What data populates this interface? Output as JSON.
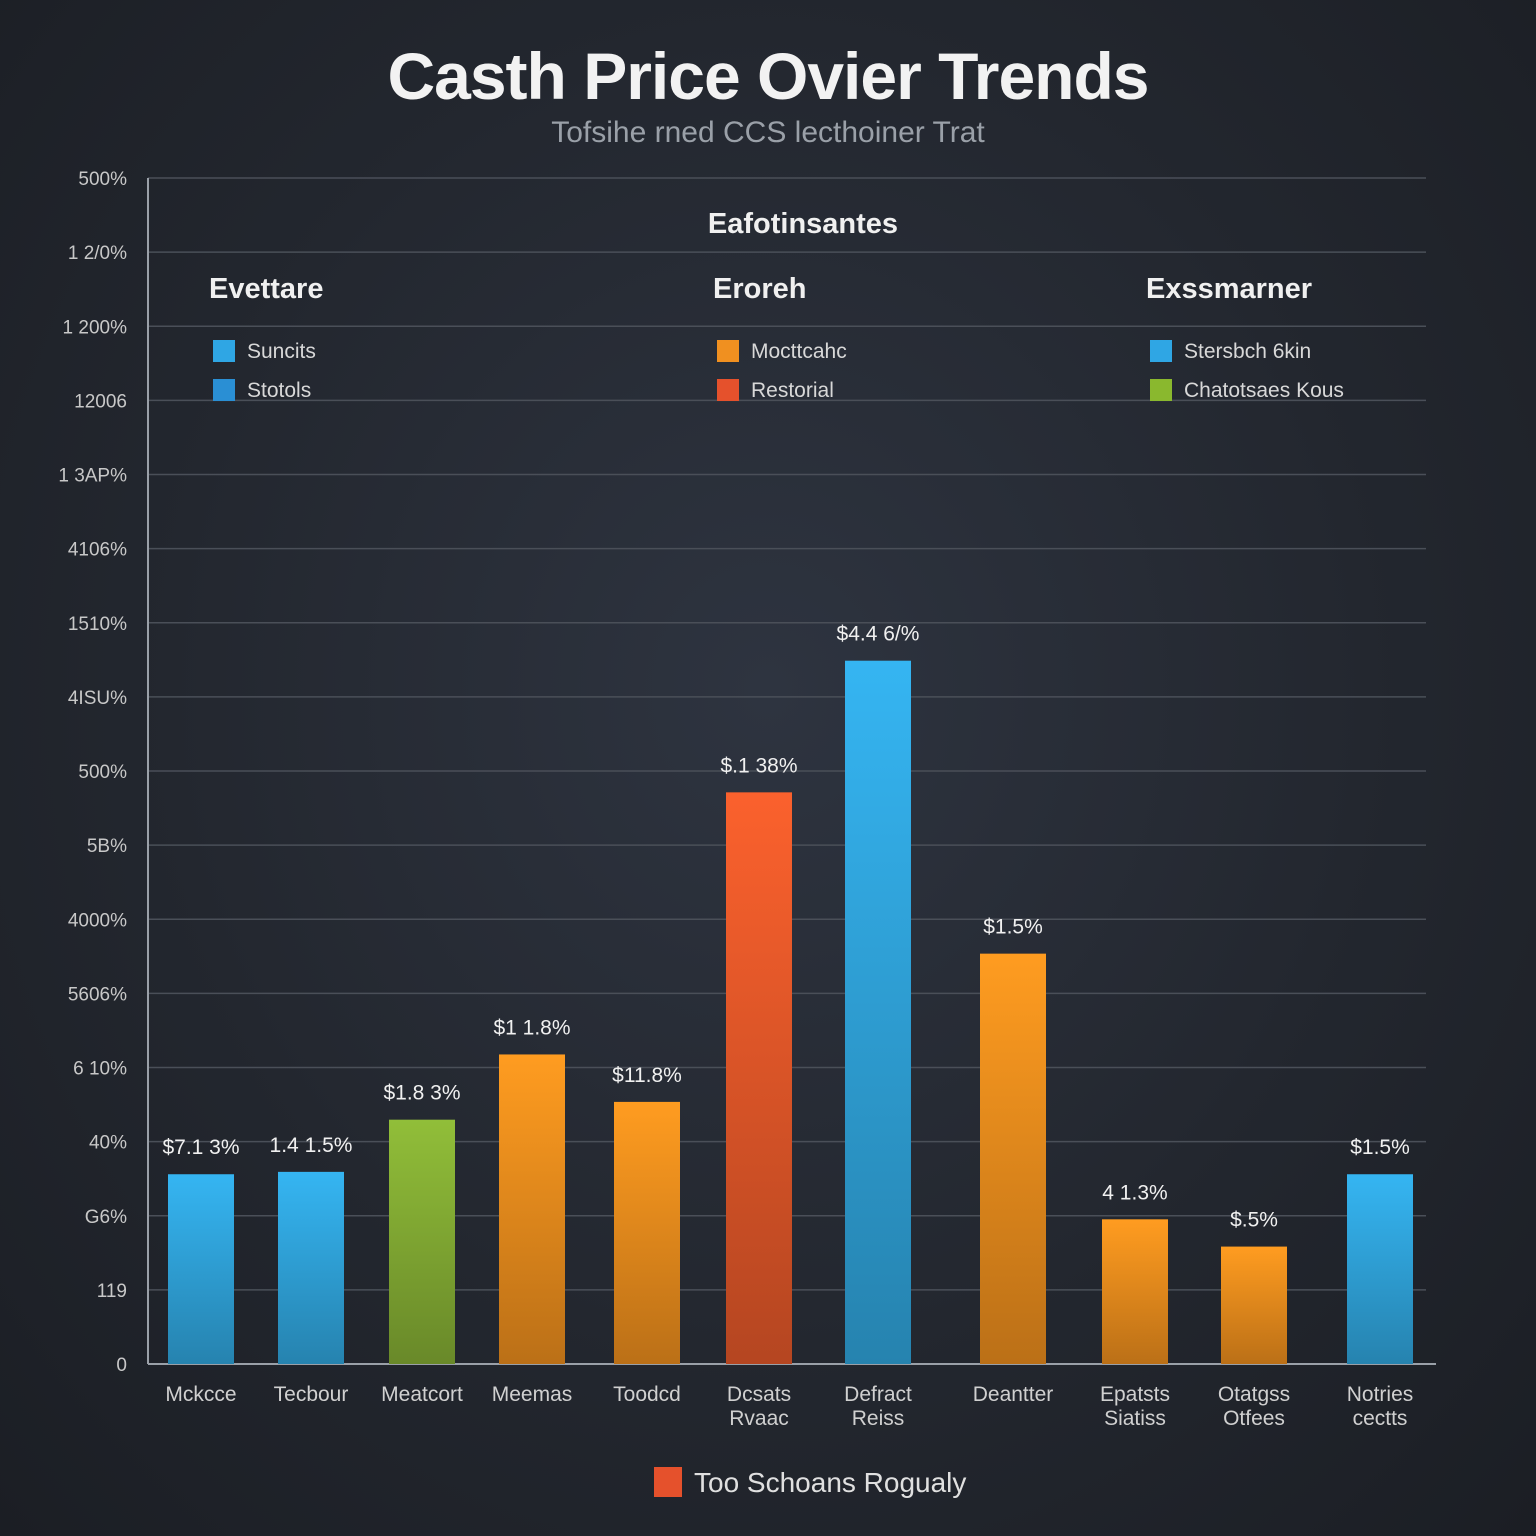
{
  "chart_data": {
    "type": "bar",
    "title": "Casth Price Ovier Trends",
    "subtitle": "Tofsihe rned CCS lecthoiner Trat",
    "yticks": [
      "0",
      "119",
      "G6%",
      "40%",
      "6 10%",
      "5606%",
      "4000%",
      "5B%",
      "500%",
      "4ISU%",
      "1510%",
      "4106%",
      "1 3AP%",
      "12006",
      "1 200%",
      "1 2/0%",
      "500%"
    ],
    "categories": [
      {
        "lines": [
          "Mckcce"
        ]
      },
      {
        "lines": [
          "Tecbour"
        ]
      },
      {
        "lines": [
          "Meatcort"
        ]
      },
      {
        "lines": [
          "Meemas"
        ]
      },
      {
        "lines": [
          "Toodcd"
        ]
      },
      {
        "lines": [
          "Dcsats",
          "Rvaac"
        ]
      },
      {
        "lines": [
          "Defract",
          "Reiss"
        ]
      },
      {
        "lines": [
          "Deantter"
        ]
      },
      {
        "lines": [
          "Epatsts",
          "Siatiss"
        ]
      },
      {
        "lines": [
          "Otatgss",
          "Otfees"
        ]
      },
      {
        "lines": [
          "Notries",
          "cectts"
        ]
      }
    ],
    "values": [
      16.0,
      16.2,
      20.6,
      26.1,
      22.1,
      48.2,
      59.3,
      34.6,
      12.2,
      9.9,
      16.0
    ],
    "ylim": [
      0,
      100
    ],
    "value_labels": [
      "$7.1 3%",
      "1.4 1.5%",
      "$1.8 3%",
      "$1 1.8%",
      "$11.8%",
      "$.1 38%",
      "$4.4 6/%",
      "$1.5%",
      "4 1.3%",
      "$.5%",
      "$1.5%"
    ],
    "bar_colors": [
      "#31a8e0",
      "#31a8e0",
      "#86b035",
      "#f0901e",
      "#f0901e",
      "#e85a2a",
      "#31a8e0",
      "#f0901e",
      "#f0901e",
      "#f0901e",
      "#31a8e0"
    ],
    "legend": {
      "placement": "top",
      "header": "Eafotinsantes",
      "groups": [
        {
          "title": "Evettare",
          "items": [
            {
              "label": "Suncits",
              "color": "#2fa6e4"
            },
            {
              "label": "Stotols",
              "color": "#2a8fd4"
            }
          ]
        },
        {
          "title": "Eroreh",
          "items": [
            {
              "label": "Mocttcahc",
              "color": "#f09020"
            },
            {
              "label": "Restorial",
              "color": "#e5512c"
            }
          ]
        },
        {
          "title": "Exssmarner",
          "items": [
            {
              "label": "Stersbch 6kin",
              "color": "#2fa6e4"
            },
            {
              "label": "Chatotsaes Kous",
              "color": "#8ab82e"
            }
          ]
        }
      ]
    },
    "bottom_legend": {
      "label": "Too Schoans Rogualy",
      "color": "#e5512c"
    },
    "grid": true
  }
}
